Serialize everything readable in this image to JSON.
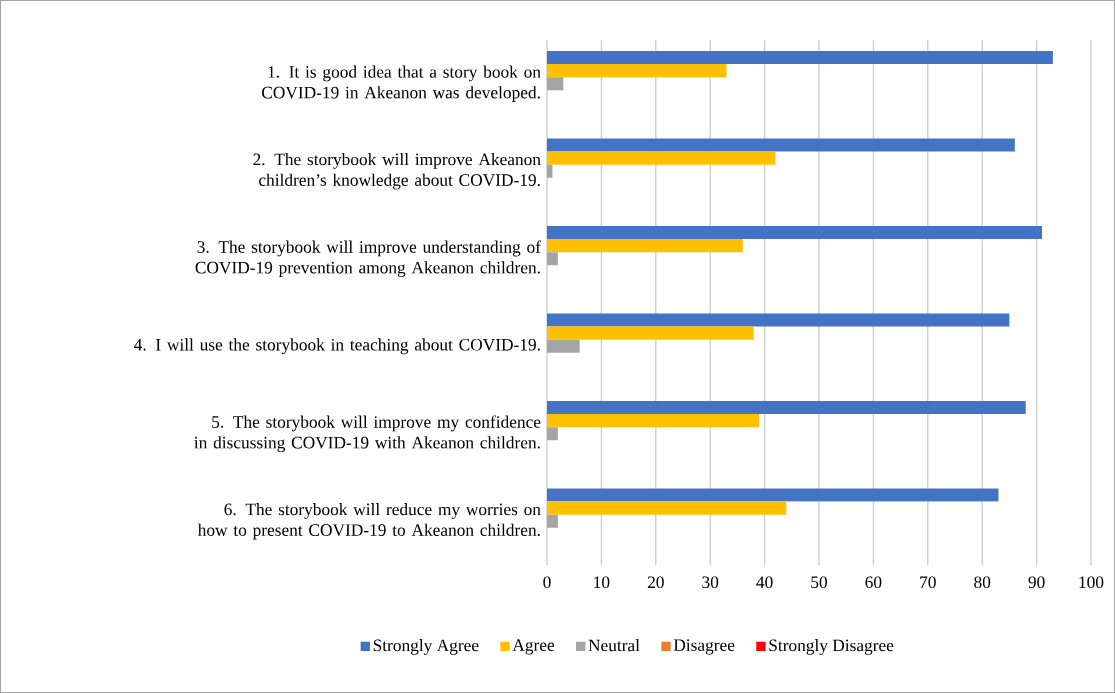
{
  "chart_data": {
    "type": "bar",
    "orientation": "horizontal",
    "categories": [
      "1. It is good idea that a story book on COVID-19 in Akeanon was developed.",
      "2. The storybook will improve Akeanon children’s knowledge about COVID-19.",
      "3. The storybook will improve understanding of COVID-19 prevention among Akeanon children.",
      "4. I will use the storybook in teaching about COVID-19.",
      "5. The storybook will improve my confidence in discussing COVID-19 with Akeanon children.",
      "6. The storybook will reduce my worries on how to present COVID-19 to Akeanon children."
    ],
    "series": [
      {
        "name": "Strongly Agree",
        "color": "#4472c4",
        "values": [
          93,
          86,
          91,
          85,
          88,
          83
        ]
      },
      {
        "name": "Agree",
        "color": "#ffc000",
        "values": [
          33,
          42,
          36,
          38,
          39,
          44
        ]
      },
      {
        "name": "Neutral",
        "color": "#a5a5a5",
        "values": [
          3,
          1,
          2,
          6,
          2,
          2
        ]
      },
      {
        "name": "Disagree",
        "color": "#ed7d31",
        "values": [
          0,
          0,
          0,
          0,
          0,
          0
        ]
      },
      {
        "name": "Strongly Disagree",
        "color": "#ff0000",
        "values": [
          0,
          0,
          0,
          0,
          0,
          0
        ]
      }
    ],
    "xlim": [
      0,
      100
    ],
    "xticks": [
      0,
      10,
      20,
      30,
      40,
      50,
      60,
      70,
      80,
      90,
      100
    ],
    "grid": "x",
    "legend": "bottom"
  }
}
